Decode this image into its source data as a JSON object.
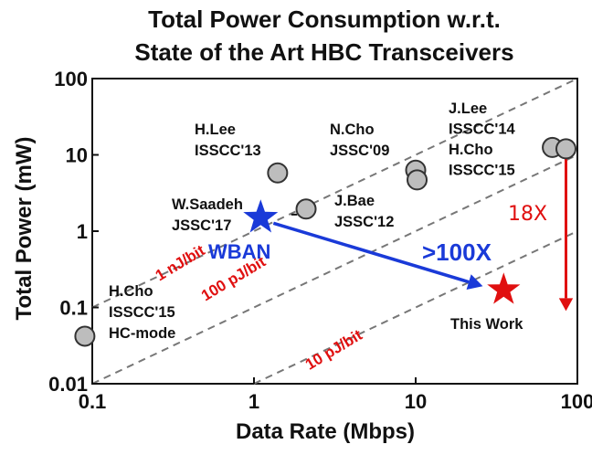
{
  "chart_data": {
    "type": "scatter",
    "title_line1": "Total Power Consumption w.r.t.",
    "title_line2": "State of the Art HBC Transceivers",
    "xlabel": "Data Rate (Mbps)",
    "ylabel": "Total Power (mW)",
    "xscale": "log",
    "yscale": "log",
    "xlim": [
      0.1,
      100
    ],
    "ylim": [
      0.01,
      100
    ],
    "xticks": [
      0.1,
      1,
      10,
      100
    ],
    "xtick_labels": [
      "0.1",
      "1",
      "10",
      "100"
    ],
    "yticks": [
      0.01,
      0.1,
      1,
      10,
      100
    ],
    "ytick_labels": [
      "0.01",
      "0.1",
      "1",
      "10",
      "100"
    ],
    "points": [
      {
        "x": 0.09,
        "y": 0.042
      },
      {
        "x": 1.4,
        "y": 5.8
      },
      {
        "x": 2.1,
        "y": 1.95
      },
      {
        "x": 10,
        "y": 6.3
      },
      {
        "x": 10.2,
        "y": 4.7
      },
      {
        "x": 70,
        "y": 12.5
      },
      {
        "x": 85,
        "y": 12
      }
    ],
    "labels": [
      {
        "lines": [
          "H.Cho",
          "ISSCC'15",
          "HC-mode"
        ]
      },
      {
        "lines": [
          "H.Lee",
          "ISSCC'13"
        ]
      },
      {
        "lines": [
          "W.Saadeh",
          "JSSC'17"
        ]
      },
      {
        "lines": [
          "N.Cho",
          "JSSC'09"
        ]
      },
      {
        "lines": [
          "J.Bae",
          "JSSC'12"
        ]
      },
      {
        "lines": [
          "J.Lee",
          "ISSCC'14",
          "H.Cho",
          "ISSCC'15"
        ]
      },
      {
        "lines": [
          "This Work"
        ]
      }
    ],
    "efficiency_lines": [
      {
        "label": "1 nJ/bit",
        "energy_pj_per_bit": 1000
      },
      {
        "label": "100 pJ/bit",
        "energy_pj_per_bit": 100
      },
      {
        "label": "10 pJ/bit",
        "energy_pj_per_bit": 10
      }
    ],
    "wban_star": {
      "x": 1.1,
      "y": 1.5,
      "label": "WBAN",
      "color": "#1a3ad8"
    },
    "this_work_star": {
      "x": 35,
      "y": 0.17,
      "color": "#e01010"
    },
    "improvement": {
      "label": ">100X",
      "from": [
        1.1,
        1.5
      ],
      "to": [
        26,
        0.19
      ]
    },
    "reduction": {
      "label": "18X",
      "x": 85,
      "from_y": 10,
      "to_y": 0.09
    }
  }
}
